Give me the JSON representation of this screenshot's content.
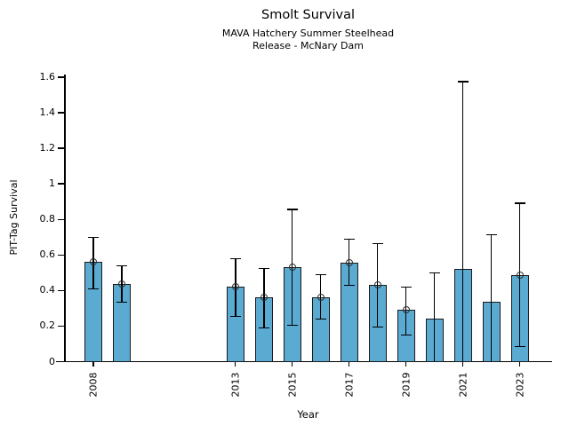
{
  "chart_data": {
    "type": "bar",
    "title": "Smolt Survival",
    "subtitle1": "MAVA Hatchery Summer Steelhead",
    "subtitle2": "Release - McNary Dam",
    "xlabel": "Year",
    "ylabel": "PIT-Tag Survival",
    "ylim": [
      0,
      1.65
    ],
    "grid": false,
    "legend": "none",
    "bar_color": "#5aaad2",
    "bar_edge_color": "#1a1a1a",
    "error_bar_color": "#000000",
    "yticks": [
      0,
      0.2,
      0.4,
      0.6,
      0.8,
      1.0,
      1.2,
      1.4,
      1.6
    ],
    "ytick_labels": [
      "0",
      "0.2",
      "0.4",
      "0.6",
      "0.8",
      "1",
      "1.2",
      "1.4",
      "1.6"
    ],
    "xtick_years": [
      2008,
      2013,
      2015,
      2017,
      2019,
      2021,
      2023
    ],
    "xtick_labels": [
      "2008",
      "2013",
      "2015",
      "2017",
      "2019",
      "2021",
      "2023"
    ],
    "series": [
      {
        "year": 2008,
        "value": 0.56,
        "err_low": 0.41,
        "err_high": 0.7,
        "marker": true
      },
      {
        "year": 2009,
        "value": 0.435,
        "err_low": 0.335,
        "err_high": 0.54,
        "marker": true
      },
      {
        "year": 2013,
        "value": 0.42,
        "err_low": 0.255,
        "err_high": 0.58,
        "marker": true
      },
      {
        "year": 2014,
        "value": 0.36,
        "err_low": 0.19,
        "err_high": 0.525,
        "marker": true
      },
      {
        "year": 2015,
        "value": 0.53,
        "err_low": 0.205,
        "err_high": 0.855,
        "marker": true
      },
      {
        "year": 2016,
        "value": 0.36,
        "err_low": 0.24,
        "err_high": 0.49,
        "marker": true
      },
      {
        "year": 2017,
        "value": 0.555,
        "err_low": 0.43,
        "err_high": 0.69,
        "marker": true
      },
      {
        "year": 2018,
        "value": 0.43,
        "err_low": 0.195,
        "err_high": 0.665,
        "marker": true
      },
      {
        "year": 2019,
        "value": 0.29,
        "err_low": 0.15,
        "err_high": 0.42,
        "marker": true
      },
      {
        "year": 2020,
        "value": 0.24,
        "err_low": 0.0,
        "err_high": 0.5,
        "marker": false
      },
      {
        "year": 2021,
        "value": 0.52,
        "err_low": 0.0,
        "err_high": 1.575,
        "marker": false
      },
      {
        "year": 2022,
        "value": 0.335,
        "err_low": 0.0,
        "err_high": 0.715,
        "marker": false
      },
      {
        "year": 2023,
        "value": 0.485,
        "err_low": 0.085,
        "err_high": 0.89,
        "marker": true
      }
    ]
  }
}
